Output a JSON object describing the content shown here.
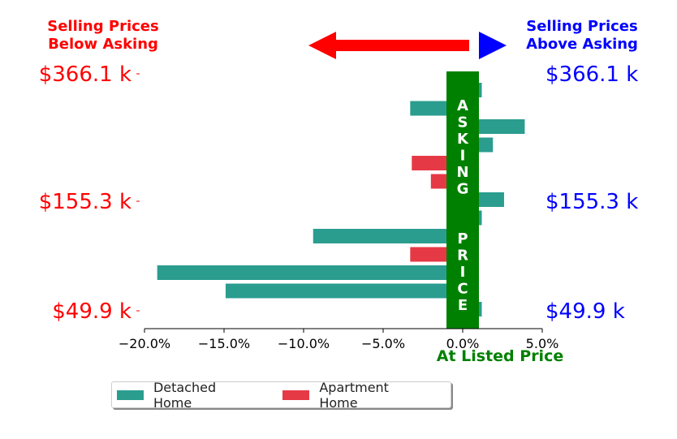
{
  "header": {
    "left_title_line1": "Selling Prices",
    "left_title_line2": "Below Asking",
    "right_title_line1": "Selling Prices",
    "right_title_line2": "Above Asking"
  },
  "labels": {
    "asking_price_vertical": "ASKING  PRICE",
    "at_listed_price": "At Listed Price"
  },
  "colors": {
    "below": "#ff0000",
    "above": "#0000ff",
    "detached": "#2a9d8f",
    "apartment": "#e63946",
    "asking_band": "#008000"
  },
  "chart_data": {
    "type": "bar",
    "orientation": "horizontal",
    "x_tick_labels": [
      "−20.0%",
      "−15.0%",
      "−10.0%",
      "−5.0%",
      "0.0%",
      "5.0%"
    ],
    "x_ticks": [
      -20,
      -15,
      -10,
      -5,
      0,
      5
    ],
    "xlim": [
      -20,
      5
    ],
    "y_tick_labels": [
      "$366.1 k",
      "$155.3 k",
      "$49.9 k"
    ],
    "series": [
      {
        "name": "Detached Home",
        "color": "#2a9d8f"
      },
      {
        "name": "Apartment Home",
        "color": "#e63946"
      }
    ],
    "bars": [
      {
        "series": "Detached Home",
        "value": 1.2
      },
      {
        "series": "Detached Home",
        "value": -3.3
      },
      {
        "series": "Detached Home",
        "value": 3.9
      },
      {
        "series": "Detached Home",
        "value": 1.9
      },
      {
        "series": "Apartment Home",
        "value": -3.2
      },
      {
        "series": "Apartment Home",
        "value": -2.0
      },
      {
        "series": "Detached Home",
        "value": 2.6
      },
      {
        "series": "Detached Home",
        "value": 1.2
      },
      {
        "series": "Detached Home",
        "value": -9.4
      },
      {
        "series": "Apartment Home",
        "value": -3.3
      },
      {
        "series": "Detached Home",
        "value": -19.2
      },
      {
        "series": "Detached Home",
        "value": -14.9
      },
      {
        "series": "Detached Home",
        "value": 1.2
      }
    ]
  },
  "legend": {
    "detached_label": "Detached Home",
    "apartment_label": "Apartment Home"
  }
}
